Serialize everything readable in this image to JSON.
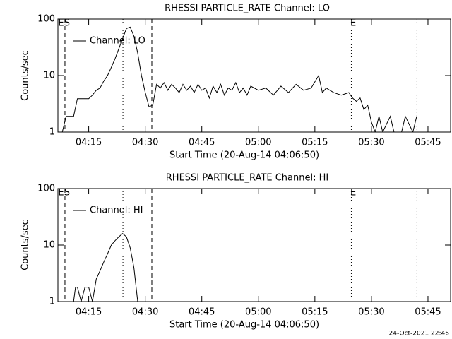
{
  "chart_data": [
    {
      "type": "line",
      "title": "RHESSI PARTICLE_RATE Channel: LO",
      "xlabel": "Start Time (20-Aug-14 04:06:50)",
      "ylabel": "Counts/sec",
      "log_y": true,
      "ylim": [
        1,
        100
      ],
      "yticks": [
        1,
        10,
        100
      ],
      "xlim": [
        "04:06:50",
        "05:51"
      ],
      "xticks": [
        "04:15",
        "04:30",
        "04:45",
        "05:00",
        "05:15",
        "05:30",
        "05:45"
      ],
      "vlines": [
        {
          "x": "04:08:42",
          "style": "dashed"
        },
        {
          "x": "04:24:05",
          "style": "dotted"
        },
        {
          "x": "04:31:45",
          "style": "dashed"
        },
        {
          "x": "05:24:40",
          "style": "dotted"
        },
        {
          "x": "05:42:05",
          "style": "dotted"
        }
      ],
      "annotations": [
        {
          "text": "E",
          "x": "04:07:40"
        },
        {
          "text": "S",
          "x": "04:09:15"
        },
        {
          "text": "E",
          "x": "05:25:10"
        }
      ],
      "x": [
        "04:08",
        "04:09",
        "04:10",
        "04:11",
        "04:12",
        "04:13",
        "04:14",
        "04:15",
        "04:16",
        "04:17",
        "04:18",
        "04:19",
        "04:20",
        "04:21",
        "04:22",
        "04:23",
        "04:24",
        "04:25",
        "04:26",
        "04:27",
        "04:28",
        "04:29",
        "04:30",
        "04:31",
        "04:32",
        "04:33",
        "04:34",
        "04:35",
        "04:36",
        "04:37",
        "04:38",
        "04:39",
        "04:40",
        "04:41",
        "04:42",
        "04:43",
        "04:44",
        "04:45",
        "04:46",
        "04:47",
        "04:48",
        "04:49",
        "04:50",
        "04:51",
        "04:52",
        "04:53",
        "04:54",
        "04:55",
        "04:56",
        "04:57",
        "04:58",
        "05:00",
        "05:02",
        "05:04",
        "05:06",
        "05:08",
        "05:10",
        "05:12",
        "05:14",
        "05:16",
        "05:17",
        "05:18",
        "05:20",
        "05:22",
        "05:24",
        "05:25",
        "05:26",
        "05:27",
        "05:28",
        "05:29",
        "05:30",
        "05:31",
        "05:32",
        "05:33",
        "05:35",
        "05:36",
        "05:38",
        "05:39",
        "05:41",
        "05:42"
      ],
      "series": [
        {
          "name": "Channel: LO",
          "color": "#000000",
          "values": [
            1,
            1.9,
            1.9,
            1.9,
            3.9,
            3.9,
            3.9,
            3.9,
            4.5,
            5.5,
            6,
            8,
            10,
            14,
            20,
            30,
            45,
            68,
            72,
            50,
            25,
            10,
            5,
            2.8,
            3,
            7,
            6,
            7.5,
            5.5,
            7,
            6,
            5,
            7,
            5.5,
            6.5,
            5,
            7,
            5.5,
            6,
            4,
            6.5,
            5,
            7,
            4.5,
            6,
            5.5,
            7.5,
            5,
            6,
            4.5,
            6.5,
            5.5,
            6,
            4.5,
            6.5,
            5,
            7,
            5.5,
            6,
            10,
            5,
            6,
            5,
            4.5,
            5,
            4,
            3.5,
            4,
            2.5,
            3,
            1.5,
            1,
            1.9,
            1,
            1.9,
            1,
            1,
            1.9,
            1,
            1.9
          ]
        }
      ]
    },
    {
      "type": "line",
      "title": "RHESSI PARTICLE_RATE Channel: HI",
      "xlabel": "Start Time (20-Aug-14 04:06:50)",
      "ylabel": "Counts/sec",
      "log_y": true,
      "ylim": [
        1,
        100
      ],
      "yticks": [
        1,
        10,
        100
      ],
      "xlim": [
        "04:06:50",
        "05:51"
      ],
      "xticks": [
        "04:15",
        "04:30",
        "04:45",
        "05:00",
        "05:15",
        "05:30",
        "05:45"
      ],
      "vlines": [
        {
          "x": "04:08:42",
          "style": "dashed"
        },
        {
          "x": "04:24:05",
          "style": "dotted"
        },
        {
          "x": "04:31:45",
          "style": "dashed"
        },
        {
          "x": "05:24:40",
          "style": "dotted"
        },
        {
          "x": "05:42:05",
          "style": "dotted"
        }
      ],
      "annotations": [
        {
          "text": "E",
          "x": "04:07:40"
        },
        {
          "text": "S",
          "x": "04:09:15"
        },
        {
          "text": "E",
          "x": "05:25:10"
        }
      ],
      "x": [
        "04:11",
        "04:11:30",
        "04:12",
        "04:13",
        "04:14",
        "04:15",
        "04:16",
        "04:17",
        "04:18",
        "04:19",
        "04:20",
        "04:21",
        "04:22",
        "04:23",
        "04:24",
        "04:25",
        "04:26",
        "04:27",
        "04:27:30",
        "04:28"
      ],
      "series": [
        {
          "name": "Channel: HI",
          "color": "#000000",
          "values": [
            1,
            1.8,
            1.8,
            1,
            1.8,
            1.8,
            1,
            2.5,
            3.5,
            5,
            7,
            10,
            12,
            14,
            16,
            14,
            9,
            4,
            2,
            1
          ]
        }
      ]
    }
  ],
  "footer": "24-Oct-2021 22:46"
}
